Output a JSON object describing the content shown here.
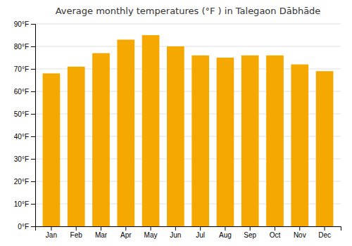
{
  "chart_data": {
    "type": "bar",
    "title": "Average monthly temperatures (°F ) in Talegaon Dābhāde",
    "categories": [
      "Jan",
      "Feb",
      "Mar",
      "Apr",
      "May",
      "Jun",
      "Jul",
      "Aug",
      "Sep",
      "Oct",
      "Nov",
      "Dec"
    ],
    "values": [
      68,
      71,
      77,
      83,
      85,
      80,
      76,
      75,
      76,
      76,
      72,
      69
    ],
    "color": "#F5A800",
    "ylim": [
      0,
      90
    ],
    "yticks": [
      {
        "value": 0,
        "label": "0°F"
      },
      {
        "value": 10,
        "label": "10°F"
      },
      {
        "value": 20,
        "label": "20°F"
      },
      {
        "value": 30,
        "label": "30°F"
      },
      {
        "value": 40,
        "label": "40°F"
      },
      {
        "value": 50,
        "label": "50°F"
      },
      {
        "value": 60,
        "label": "60°F"
      },
      {
        "value": 70,
        "label": "70°F"
      },
      {
        "value": 80,
        "label": "80°F"
      },
      {
        "value": 90,
        "label": "90°F"
      }
    ],
    "grid": true
  }
}
